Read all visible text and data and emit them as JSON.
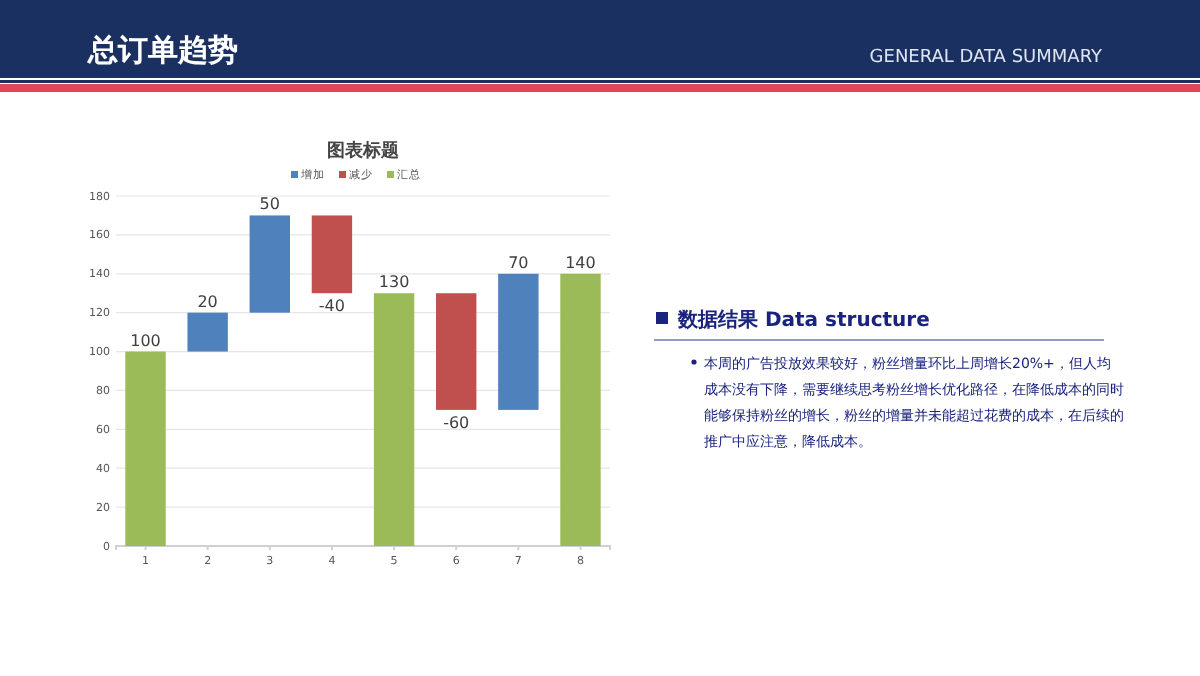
{
  "chart_data": {
    "type": "bar",
    "title": "图表标题",
    "categories": [
      "1",
      "2",
      "3",
      "4",
      "5",
      "6",
      "7",
      "8"
    ],
    "series": [
      {
        "name": "增加",
        "color": "#4f81bd",
        "values": [
          null,
          20,
          50,
          null,
          null,
          null,
          70,
          null
        ],
        "base": [
          null,
          100,
          120,
          null,
          null,
          null,
          70,
          null
        ]
      },
      {
        "name": "减少",
        "color": "#c0504d",
        "values": [
          null,
          null,
          null,
          -40,
          null,
          -60,
          null,
          null
        ],
        "base": [
          null,
          null,
          null,
          170,
          null,
          130,
          null,
          null
        ]
      },
      {
        "name": "汇总",
        "color": "#9bbb59",
        "values": [
          100,
          null,
          null,
          null,
          130,
          null,
          null,
          140
        ],
        "base": [
          0,
          null,
          null,
          null,
          0,
          null,
          null,
          0
        ]
      }
    ],
    "data_labels": true,
    "ylim": [
      0,
      180
    ],
    "yticks": [
      0,
      20,
      40,
      60,
      80,
      100,
      120,
      140,
      160,
      180
    ],
    "grid": "y",
    "legend": "top",
    "annotations": [
      "总订单趋势",
      "GENERAL DATA SUMMARY",
      "数据结果 Data structure",
      "本周的广告投放效果较好，粉丝增量环比上周增长20%+，但人均成本没有下降，需要继续思考粉丝增长优化路径，在降低成本的同时能够保持粉丝的增长，粉丝的增量并未能超过花费的成本，在后续的推广中应注意，降低成本。"
    ]
  }
}
